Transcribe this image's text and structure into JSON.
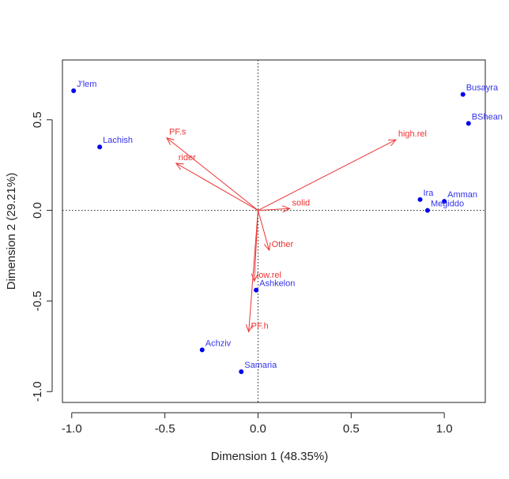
{
  "chart_data": {
    "type": "scatter",
    "subtype": "correspondence-analysis-biplot",
    "xlabel": "Dimension 1 (48.35%)",
    "ylabel": "Dimension 2 (29.21%)",
    "xlim": [
      -1.05,
      1.22
    ],
    "ylim": [
      -1.06,
      0.83
    ],
    "x_ticks": [
      {
        "value": -1.0,
        "label": "-1.0"
      },
      {
        "value": -0.5,
        "label": "-0.5"
      },
      {
        "value": 0.0,
        "label": "0.0"
      },
      {
        "value": 0.5,
        "label": "0.5"
      },
      {
        "value": 1.0,
        "label": "1.0"
      }
    ],
    "y_ticks": [
      {
        "value": -1.0,
        "label": "-1.0"
      },
      {
        "value": -0.5,
        "label": "-0.5"
      },
      {
        "value": 0.0,
        "label": "0.0"
      },
      {
        "value": 0.5,
        "label": "0.5"
      }
    ],
    "reference_lines": {
      "x": 0,
      "y": 0,
      "style": "dotted"
    },
    "series": [
      {
        "name": "sites",
        "kind": "points",
        "color": "#0000ee",
        "points": [
          {
            "label": "J'lem",
            "x": -0.99,
            "y": 0.66
          },
          {
            "label": "Lachish",
            "x": -0.85,
            "y": 0.35
          },
          {
            "label": "Busayra",
            "x": 1.1,
            "y": 0.64
          },
          {
            "label": "BShean",
            "x": 1.13,
            "y": 0.48
          },
          {
            "label": "Ira",
            "x": 0.87,
            "y": 0.06
          },
          {
            "label": "Amman",
            "x": 1.0,
            "y": 0.05
          },
          {
            "label": "Megiddo",
            "x": 0.91,
            "y": 0.0
          },
          {
            "label": "Ashkelon",
            "x": -0.01,
            "y": -0.44
          },
          {
            "label": "Achziv",
            "x": -0.3,
            "y": -0.77
          },
          {
            "label": "Samaria",
            "x": -0.09,
            "y": -0.89
          }
        ]
      },
      {
        "name": "variables",
        "kind": "arrows",
        "color": "#ee3333",
        "arrows": [
          {
            "label": "PF.s",
            "x": -0.49,
            "y": 0.4
          },
          {
            "label": "rider",
            "x": -0.44,
            "y": 0.26
          },
          {
            "label": "high.rel",
            "x": 0.74,
            "y": 0.39
          },
          {
            "label": "solid",
            "x": 0.17,
            "y": 0.01
          },
          {
            "label": "Other",
            "x": 0.06,
            "y": -0.22
          },
          {
            "label": "low.rel",
            "x": -0.02,
            "y": -0.39
          },
          {
            "label": "PF.h",
            "x": -0.05,
            "y": -0.67
          }
        ]
      }
    ]
  }
}
